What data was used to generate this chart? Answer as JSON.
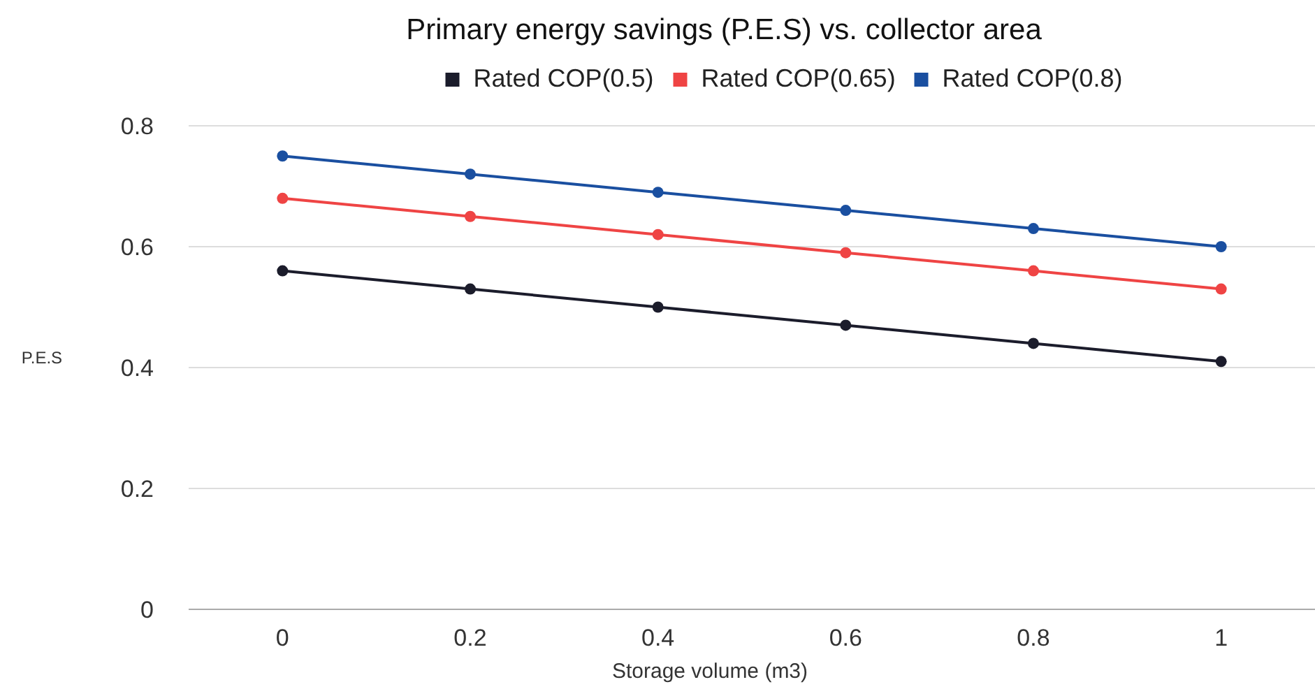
{
  "chart_data": {
    "type": "line",
    "title": "Primary energy savings (P.E.S) vs. collector area",
    "xlabel": "Storage volume (m3)",
    "ylabel": "P.E.S",
    "categories": [
      "0",
      "0.2",
      "0.4",
      "0.6",
      "0.8",
      "1"
    ],
    "series": [
      {
        "name": "Rated COP(0.5)",
        "color": "#1b1c2b",
        "values": [
          0.56,
          0.53,
          0.5,
          0.47,
          0.44,
          0.41
        ]
      },
      {
        "name": "Rated COP(0.65)",
        "color": "#ef4444",
        "values": [
          0.68,
          0.65,
          0.62,
          0.59,
          0.56,
          0.53
        ]
      },
      {
        "name": "Rated COP(0.8)",
        "color": "#1a4fa0",
        "values": [
          0.75,
          0.72,
          0.69,
          0.66,
          0.63,
          0.6
        ]
      }
    ],
    "ylim": [
      0,
      0.8
    ],
    "yticks": [
      0,
      0.2,
      0.4,
      0.6,
      0.8
    ],
    "grid": "y",
    "legend": "top",
    "marker": "circle",
    "line_style": "solid"
  }
}
